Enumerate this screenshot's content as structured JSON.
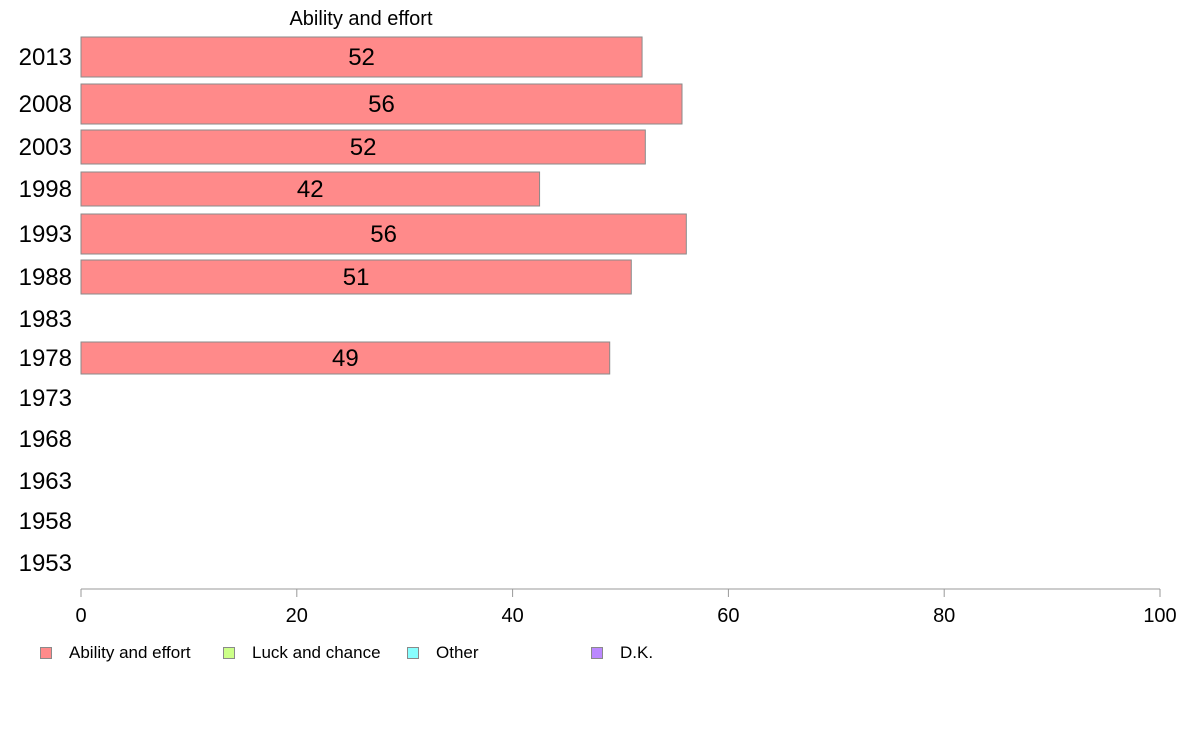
{
  "chart_data": {
    "type": "bar",
    "orientation": "horizontal",
    "title": "Ability and effort",
    "categories": [
      "2013",
      "2008",
      "2003",
      "1998",
      "1993",
      "1988",
      "1983",
      "1978",
      "1973",
      "1968",
      "1963",
      "1958",
      "1953"
    ],
    "series": [
      {
        "name": "Ability and effort",
        "color": "#ff8a8a",
        "values": [
          52,
          55.7,
          52.3,
          42.5,
          56.1,
          51,
          null,
          49,
          null,
          null,
          null,
          null,
          null
        ],
        "labels": [
          "52",
          "56",
          "52",
          "42",
          "56",
          "51",
          "",
          "49",
          "",
          "",
          "",
          "",
          ""
        ]
      }
    ],
    "xlim": [
      0,
      100
    ],
    "xticks": [
      "0",
      "20",
      "40",
      "60",
      "80",
      "100"
    ],
    "grid": false,
    "legend": {
      "placement": "bottom",
      "items": [
        {
          "label": "Ability and effort",
          "color": "#ff8a8a"
        },
        {
          "label": "Luck and chance",
          "color": "#ccff88"
        },
        {
          "label": "Other",
          "color": "#88ffff"
        },
        {
          "label": "D.K.",
          "color": "#bb88ff"
        }
      ]
    }
  }
}
